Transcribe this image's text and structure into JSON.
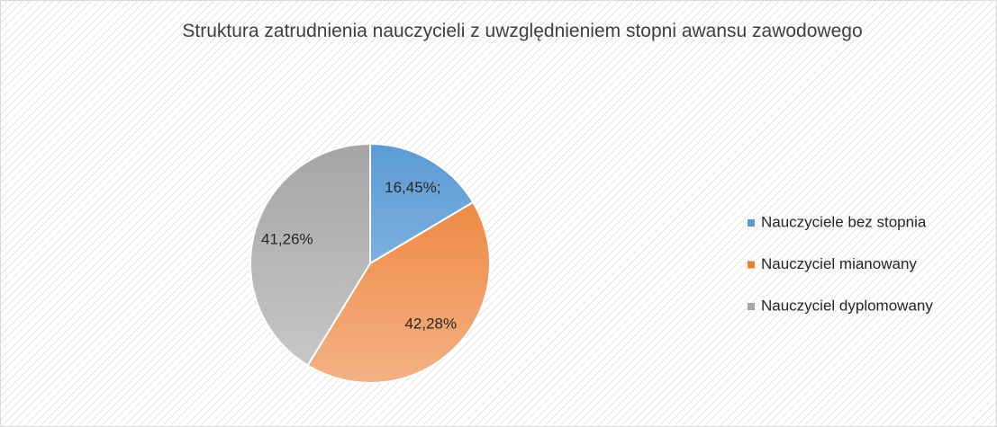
{
  "chart_data": {
    "type": "pie",
    "title": "Struktura zatrudnienia nauczycieli z uwzględnieniem stopni awansu zawodowego",
    "categories": [
      "Nauczyciele bez stopnia",
      "Nauczyciel mianowany",
      "Nauczyciel dyplomowany"
    ],
    "values": [
      16.45,
      42.28,
      41.26
    ],
    "value_labels": [
      "16,45%;",
      "42,28%",
      "41,26%"
    ],
    "colors": [
      "#5b9bd5",
      "#ed7d31",
      "#a5a5a5"
    ],
    "legend": "right"
  }
}
